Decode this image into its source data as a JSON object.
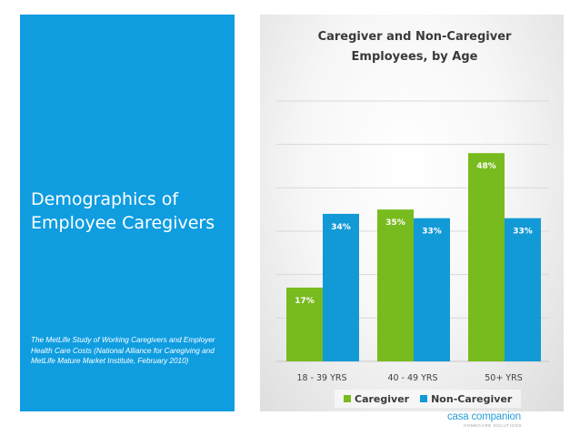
{
  "left_panel": {
    "title": "Demographics of Employee Caregivers",
    "citation": "The MetLife Study of Working Caregivers and Employer Health Care Costs (National Alliance for Caregiving and MetLife Mature Market Institute, February 2010)"
  },
  "logo": {
    "name": "casa companion",
    "tagline": "HOMECARE SOLUTIONS"
  },
  "colors": {
    "panel_blue": "#0f9de0",
    "caregiver_green": "#78bb1e",
    "noncaregiver_blue": "#129ad6"
  },
  "chart_data": {
    "type": "bar",
    "title": "Caregiver and Non-Caregiver Employees, by Age",
    "categories": [
      "18 - 39 YRS",
      "40 - 49 YRS",
      "50+ YRS"
    ],
    "series": [
      {
        "name": "Caregiver",
        "values": [
          17,
          35,
          48
        ],
        "labels": [
          "17%",
          "35%",
          "48%"
        ],
        "color": "#78bb1e"
      },
      {
        "name": "Non-Caregiver",
        "values": [
          34,
          33,
          33
        ],
        "labels": [
          "34%",
          "33%",
          "33%"
        ],
        "color": "#129ad6"
      }
    ],
    "xlabel": "",
    "ylabel": "",
    "ylim": [
      0,
      60
    ],
    "grid": true,
    "legend_position": "bottom"
  }
}
